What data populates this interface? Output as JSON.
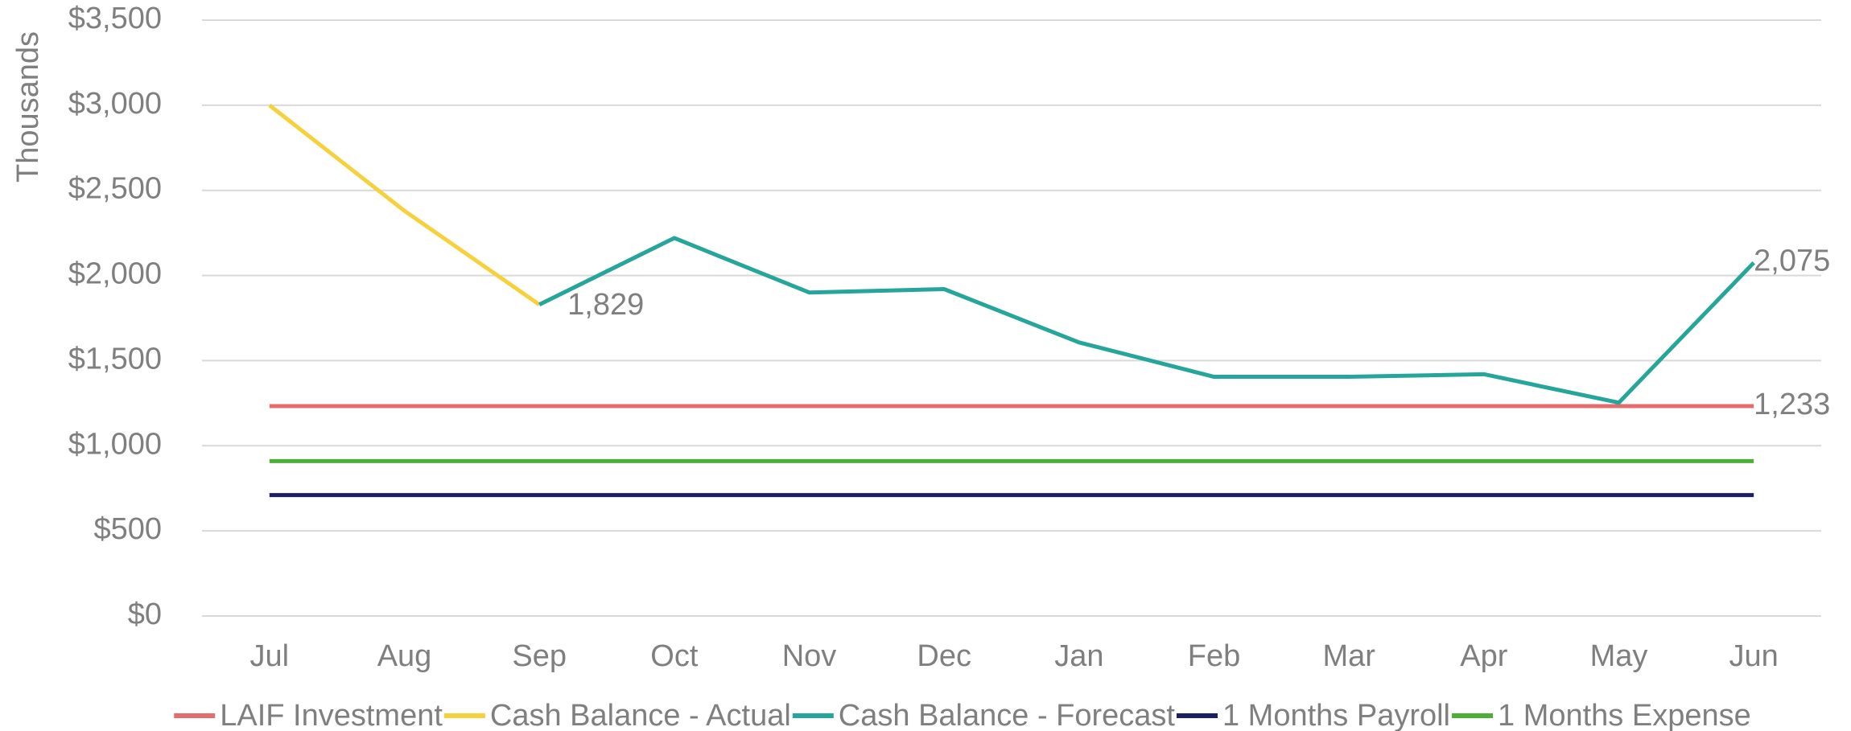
{
  "chart_data": {
    "type": "line",
    "y_axis_label": "Thousands",
    "categories": [
      "Jul",
      "Aug",
      "Sep",
      "Oct",
      "Nov",
      "Dec",
      "Jan",
      "Feb",
      "Mar",
      "Apr",
      "May",
      "Jun"
    ],
    "series": [
      {
        "name": "LAIF Investment",
        "color": "#e46c6c",
        "values": [
          1233,
          1233,
          1233,
          1233,
          1233,
          1233,
          1233,
          1233,
          1233,
          1233,
          1233,
          1233
        ],
        "value_labels": [
          null,
          null,
          null,
          null,
          null,
          null,
          null,
          null,
          null,
          null,
          null,
          "1,233"
        ]
      },
      {
        "name": "Cash Balance - Actual",
        "color": "#f7d13d",
        "values": [
          3000,
          2380,
          1829,
          null,
          null,
          null,
          null,
          null,
          null,
          null,
          null,
          null
        ],
        "value_labels": [
          null,
          null,
          "1,829",
          null,
          null,
          null,
          null,
          null,
          null,
          null,
          null,
          null
        ]
      },
      {
        "name": "Cash Balance - Forecast",
        "color": "#26a69a",
        "values": [
          null,
          null,
          1829,
          2220,
          1900,
          1920,
          1607,
          1405,
          1405,
          1420,
          1253,
          2075
        ],
        "value_labels": [
          null,
          null,
          null,
          null,
          null,
          null,
          null,
          null,
          null,
          null,
          null,
          "2,075"
        ]
      },
      {
        "name": "1 Months Payroll",
        "color": "#1c1f66",
        "values": [
          710,
          710,
          710,
          710,
          710,
          710,
          710,
          710,
          710,
          710,
          710,
          710
        ]
      },
      {
        "name": "1 Months Expense",
        "color": "#4caf35",
        "values": [
          910,
          910,
          910,
          910,
          910,
          910,
          910,
          910,
          910,
          910,
          910,
          910
        ]
      }
    ],
    "ylim": [
      0,
      3500
    ],
    "yticks": [
      {
        "value": 0,
        "label": "$0"
      },
      {
        "value": 500,
        "label": "$500"
      },
      {
        "value": 1000,
        "label": "$1,000"
      },
      {
        "value": 1500,
        "label": "$1,500"
      },
      {
        "value": 2000,
        "label": "$2,000"
      },
      {
        "value": 2500,
        "label": "$2,500"
      },
      {
        "value": 3000,
        "label": "$3,000"
      },
      {
        "value": 3500,
        "label": "$3,500"
      }
    ],
    "grid": true,
    "legend": "bottom"
  }
}
